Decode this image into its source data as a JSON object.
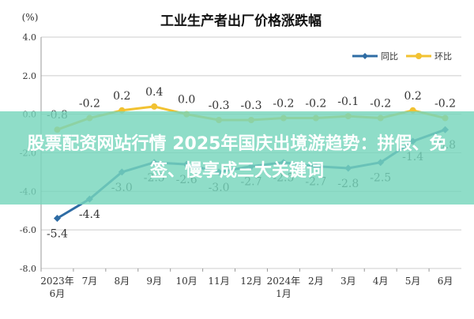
{
  "chart_data": {
    "type": "line",
    "title": "工业生产者出厂价格涨跌幅",
    "ylabel": "(%)",
    "ylim": [
      -8.0,
      4.0
    ],
    "yticks": [
      "4.0",
      "2.0",
      "0.0",
      "-2.0",
      "-4.0",
      "-6.0",
      "-8.0"
    ],
    "ytick_values": [
      4,
      2,
      0,
      -2,
      -4,
      -6,
      -8
    ],
    "grid": true,
    "legend": "top-right",
    "categories": [
      "2023年6月",
      "7月",
      "8月",
      "9月",
      "10月",
      "11月",
      "12月",
      "2024年1月",
      "2月",
      "3月",
      "4月",
      "5月",
      "6月"
    ],
    "category_labels": [
      [
        "2023年",
        "6月"
      ],
      [
        "7月"
      ],
      [
        "8月"
      ],
      [
        "9月"
      ],
      [
        "10月"
      ],
      [
        "11月"
      ],
      [
        "12月"
      ],
      [
        "2024年",
        "1月"
      ],
      [
        "2月"
      ],
      [
        "3月"
      ],
      [
        "4月"
      ],
      [
        "5月"
      ],
      [
        "6月"
      ]
    ],
    "series": [
      {
        "name": "同比",
        "color": "#2e6ca4",
        "values": [
          -5.4,
          -4.4,
          -3.0,
          -2.5,
          -2.6,
          -3.0,
          -2.7,
          -2.5,
          -2.7,
          -2.8,
          -2.5,
          -1.4,
          -0.8
        ],
        "labels": [
          "-5.4",
          "-4.4",
          "-3.0",
          "-2.5",
          "-2.6",
          "-3.0",
          "-2.7",
          "-2.5",
          "-2.7",
          "-2.8",
          "-2.5",
          "-1.4",
          "-0.8"
        ]
      },
      {
        "name": "环比",
        "color": "#f2c232",
        "values": [
          -0.8,
          -0.2,
          0.2,
          0.4,
          0.0,
          -0.3,
          -0.3,
          -0.2,
          -0.2,
          -0.1,
          -0.2,
          0.2,
          -0.2
        ],
        "labels": [
          "-0.8",
          "-0.2",
          "0.2",
          "0.4",
          "0.0",
          "-0.3",
          "-0.3",
          "-0.2",
          "-0.2",
          "-0.1",
          "-0.2",
          "0.2",
          "-0.2"
        ]
      }
    ]
  },
  "banner": {
    "text": "股票配资网站行情 2025年国庆出境游趋势：拼假、免签、慢享成三大关键词"
  }
}
